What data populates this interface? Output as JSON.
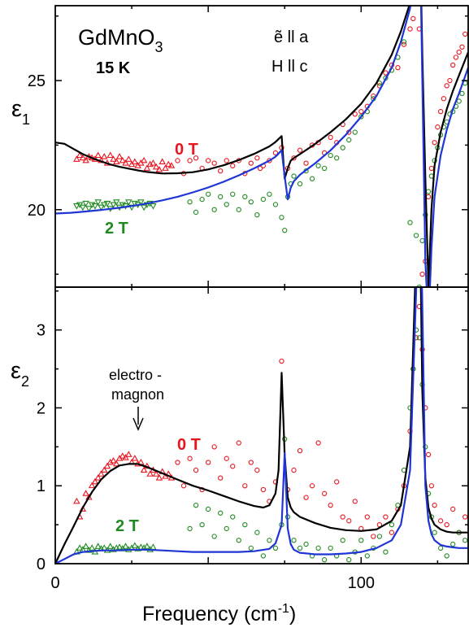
{
  "chart_data": [
    {
      "type": "line",
      "panel": "top",
      "ylabel": "ε",
      "ylabel_sub": "1",
      "title_compound_main": "GdMnO",
      "title_compound_sub": "3",
      "temperature": "15 K",
      "polarization_line1": "ẽ ll a",
      "polarization_line2": "H ll c",
      "xlim": [
        0,
        135
      ],
      "ylim": [
        17.0,
        27.9
      ],
      "yticks": [
        20,
        25
      ],
      "series": [
        {
          "name": "0 T",
          "color": "#e8141e",
          "kind": "model",
          "line_color": "#000000",
          "x": [
            0,
            3,
            6,
            9,
            12,
            15,
            18,
            21,
            24,
            27,
            30,
            35,
            40,
            45,
            50,
            55,
            60,
            65,
            70,
            72,
            74,
            75,
            76,
            77,
            78,
            80,
            85,
            90,
            95,
            100,
            105,
            110,
            113,
            116,
            118,
            119,
            120,
            121,
            122,
            123,
            124,
            126,
            128,
            130,
            132,
            135
          ],
          "y": [
            22.6,
            22.55,
            22.35,
            22.15,
            22.0,
            21.87,
            21.75,
            21.66,
            21.59,
            21.52,
            21.46,
            21.4,
            21.41,
            21.45,
            21.56,
            21.72,
            21.92,
            22.16,
            22.45,
            22.62,
            22.85,
            21.2,
            21.6,
            21.9,
            22.0,
            22.15,
            22.55,
            23.0,
            23.5,
            24.1,
            24.9,
            26.0,
            26.9,
            28.0,
            30.0,
            32.0,
            26.0,
            21.2,
            17.0,
            20.0,
            21.7,
            23.0,
            23.9,
            24.6,
            25.2,
            26.1
          ]
        },
        {
          "name": "2 T",
          "color": "#1f8a1f",
          "kind": "model",
          "line_color": "#1f35d6",
          "x": [
            0,
            5,
            10,
            15,
            20,
            25,
            30,
            35,
            40,
            45,
            50,
            55,
            60,
            65,
            70,
            72,
            74,
            75,
            76,
            77,
            78,
            80,
            85,
            90,
            95,
            100,
            105,
            110,
            113,
            116,
            118,
            119,
            120,
            121,
            122,
            123,
            124,
            126,
            128,
            130,
            132,
            135
          ],
          "y": [
            19.85,
            19.88,
            19.93,
            19.99,
            20.06,
            20.14,
            20.24,
            20.36,
            20.5,
            20.67,
            20.86,
            21.08,
            21.33,
            21.6,
            21.9,
            22.05,
            22.3,
            21.3,
            20.4,
            20.85,
            21.1,
            21.35,
            21.8,
            22.3,
            22.9,
            23.6,
            24.4,
            25.5,
            26.5,
            27.8,
            30.0,
            32.0,
            25.0,
            18.0,
            15.5,
            18.5,
            20.5,
            22.1,
            23.1,
            23.9,
            24.5,
            25.5
          ]
        }
      ],
      "scatter_0T": {
        "marker": "triangle",
        "x": [
          7,
          8,
          9,
          10,
          11,
          12,
          13,
          14,
          15,
          16,
          17,
          18,
          19,
          20,
          21,
          22,
          23,
          24,
          25,
          26,
          27,
          28,
          29,
          30,
          31,
          32,
          33,
          34,
          35,
          36,
          37,
          38
        ],
        "y": [
          21.95,
          22.1,
          22.0,
          21.9,
          22.05,
          22.0,
          21.95,
          22.1,
          21.9,
          22.05,
          21.8,
          22.1,
          21.95,
          21.85,
          22.05,
          21.9,
          21.8,
          21.95,
          21.75,
          21.85,
          21.7,
          21.8,
          21.9,
          21.6,
          21.75,
          21.8,
          21.65,
          21.55,
          21.85,
          21.6,
          21.75,
          21.7
        ]
      },
      "circles_0T": {
        "marker": "circle",
        "x": [
          40,
          42,
          44,
          46,
          48,
          50,
          52,
          54,
          56,
          58,
          60,
          62,
          64,
          66,
          67,
          68,
          70,
          72,
          74,
          76,
          78,
          80,
          82,
          84,
          86,
          88,
          90,
          92,
          94,
          96,
          98,
          100,
          102,
          104,
          106,
          108,
          110,
          112,
          114,
          116,
          117,
          118,
          119,
          120,
          121,
          122,
          123,
          124,
          125,
          126,
          127,
          128,
          129,
          130,
          131,
          132,
          133,
          134
        ],
        "y": [
          21.9,
          21.4,
          21.9,
          22.0,
          21.6,
          21.9,
          21.8,
          21.5,
          21.9,
          21.7,
          21.9,
          21.4,
          21.8,
          22.0,
          21.6,
          21.7,
          21.9,
          22.2,
          22.4,
          21.6,
          22.0,
          22.3,
          21.8,
          22.5,
          22.6,
          22.2,
          22.8,
          22.6,
          23.3,
          23.0,
          23.7,
          23.8,
          24.0,
          24.4,
          24.8,
          25.3,
          25.6,
          25.5,
          26.4,
          27.0,
          27.4,
          28.0,
          27.0,
          17.5,
          18.0,
          20.5,
          21.6,
          22.6,
          23.2,
          23.8,
          24.3,
          24.8,
          25.0,
          25.6,
          25.9,
          26.1,
          26.3,
          26.8
        ]
      },
      "scatter_2T": {
        "marker": "triangle-down",
        "x": [
          7,
          8,
          9,
          10,
          11,
          12,
          13,
          14,
          15,
          16,
          17,
          18,
          19,
          20,
          21,
          22,
          23,
          24,
          25,
          26,
          27,
          28,
          29,
          30,
          31,
          32
        ],
        "y": [
          20.15,
          20.2,
          20.1,
          20.25,
          20.05,
          20.2,
          20.15,
          20.3,
          20.1,
          20.2,
          20.25,
          20.05,
          20.2,
          20.3,
          20.1,
          20.2,
          20.15,
          20.3,
          20.1,
          20.25,
          20.2,
          20.3,
          20.1,
          20.2,
          20.25,
          20.15
        ]
      },
      "circles_2T": {
        "marker": "circle",
        "x": [
          44,
          46,
          48,
          50,
          52,
          54,
          56,
          58,
          60,
          62,
          64,
          66,
          68,
          70,
          72,
          74,
          75,
          76,
          77,
          78,
          80,
          82,
          84,
          86,
          88,
          90,
          92,
          94,
          96,
          98,
          100,
          102,
          104,
          106,
          108,
          110,
          112,
          114,
          116,
          118,
          119,
          120,
          121,
          122,
          123,
          124,
          125,
          126,
          127,
          128,
          129,
          130,
          131,
          132,
          133,
          134
        ],
        "y": [
          20.3,
          19.9,
          20.4,
          20.6,
          20.0,
          20.5,
          20.2,
          20.6,
          20.0,
          20.5,
          20.3,
          19.8,
          20.4,
          20.6,
          20.2,
          19.7,
          19.2,
          20.5,
          21.0,
          21.3,
          21.0,
          21.5,
          21.2,
          21.7,
          21.6,
          22.1,
          22.0,
          22.4,
          22.7,
          23.0,
          23.6,
          23.8,
          24.3,
          24.9,
          25.1,
          25.4,
          25.9,
          26.5,
          19.5,
          19.0,
          17.0,
          18.8,
          19.8,
          20.7,
          21.3,
          21.9,
          22.4,
          22.9,
          23.2,
          23.4,
          23.7,
          23.8,
          24.0,
          24.2,
          24.5,
          24.9
        ]
      },
      "labels": {
        "zero_tesla": "0 T",
        "two_tesla": "2 T"
      }
    },
    {
      "type": "line",
      "panel": "bottom",
      "xlabel_main": "Frequency (cm",
      "xlabel_sup": "-1",
      "xlabel_tail": ")",
      "ylabel": "ε",
      "ylabel_sub": "2",
      "xlim": [
        0,
        135
      ],
      "ylim": [
        0,
        3.55
      ],
      "xticks": [
        0,
        100
      ],
      "yticks": [
        0,
        1,
        2,
        3
      ],
      "annotation_line1": "electro -",
      "annotation_line2": "magnon",
      "series": [
        {
          "name": "0 T",
          "color": "#e8141e",
          "line_color": "#000000",
          "x": [
            0,
            3,
            6,
            9,
            12,
            15,
            18,
            21,
            24,
            27,
            30,
            35,
            40,
            45,
            50,
            55,
            60,
            65,
            68,
            70,
            72,
            73,
            74,
            75,
            76,
            77,
            78,
            80,
            85,
            90,
            95,
            100,
            105,
            110,
            113,
            116,
            118,
            119,
            120,
            121,
            122,
            123,
            124,
            126,
            128,
            130,
            132,
            135
          ],
          "y": [
            0.0,
            0.25,
            0.48,
            0.72,
            0.92,
            1.08,
            1.19,
            1.26,
            1.28,
            1.28,
            1.24,
            1.16,
            1.08,
            1.0,
            0.94,
            0.87,
            0.8,
            0.74,
            0.72,
            0.75,
            0.9,
            1.2,
            2.45,
            1.4,
            0.85,
            0.72,
            0.66,
            0.6,
            0.52,
            0.46,
            0.43,
            0.42,
            0.44,
            0.55,
            0.75,
            1.5,
            4.0,
            5.0,
            2.2,
            1.1,
            0.72,
            0.58,
            0.5,
            0.44,
            0.41,
            0.4,
            0.4,
            0.4
          ]
        },
        {
          "name": "2 T",
          "color": "#1f8a1f",
          "line_color": "#1f35d6",
          "x": [
            0,
            3,
            6,
            9,
            12,
            15,
            20,
            25,
            30,
            35,
            40,
            45,
            50,
            55,
            60,
            65,
            70,
            72,
            74,
            75,
            76,
            77,
            78,
            80,
            85,
            90,
            95,
            100,
            105,
            110,
            113,
            116,
            118,
            119,
            120,
            121,
            122,
            123,
            124,
            126,
            128,
            130,
            132,
            135
          ],
          "y": [
            0.0,
            0.06,
            0.12,
            0.15,
            0.16,
            0.17,
            0.17,
            0.18,
            0.18,
            0.17,
            0.16,
            0.15,
            0.15,
            0.15,
            0.15,
            0.16,
            0.19,
            0.26,
            0.5,
            1.42,
            0.45,
            0.25,
            0.18,
            0.14,
            0.12,
            0.12,
            0.13,
            0.15,
            0.2,
            0.3,
            0.5,
            1.2,
            3.5,
            5.5,
            3.3,
            1.0,
            0.55,
            0.38,
            0.3,
            0.24,
            0.22,
            0.21,
            0.2,
            0.2
          ]
        }
      ],
      "triangles_0T": {
        "marker": "triangle",
        "x": [
          7,
          8,
          9,
          10,
          11,
          12,
          13,
          14,
          15,
          16,
          17,
          18,
          19,
          20,
          21,
          22,
          23,
          24,
          25,
          26,
          27,
          28,
          29,
          30,
          31,
          32,
          33,
          34,
          35,
          36,
          37,
          38
        ],
        "y": [
          0.8,
          0.6,
          0.7,
          0.9,
          0.85,
          1.0,
          1.05,
          1.1,
          1.15,
          1.2,
          1.25,
          1.3,
          1.32,
          1.28,
          1.35,
          1.38,
          1.36,
          1.4,
          1.3,
          1.35,
          1.28,
          1.3,
          1.2,
          1.25,
          1.15,
          1.2,
          1.15,
          1.1,
          1.18,
          1.12,
          1.15,
          1.1
        ]
      },
      "circles_0T": {
        "marker": "circle",
        "x": [
          40,
          42,
          44,
          46,
          48,
          50,
          52,
          54,
          56,
          58,
          60,
          62,
          64,
          66,
          68,
          70,
          72,
          74,
          76,
          78,
          80,
          82,
          84,
          86,
          88,
          90,
          92,
          94,
          96,
          98,
          100,
          102,
          104,
          106,
          108,
          110,
          112,
          114,
          116,
          117,
          118,
          119,
          120,
          121,
          122,
          123,
          124,
          126,
          128,
          130,
          132,
          134
        ],
        "y": [
          1.3,
          1.0,
          1.35,
          1.2,
          0.95,
          1.3,
          1.5,
          1.1,
          1.35,
          1.25,
          1.55,
          1.0,
          1.3,
          1.2,
          0.95,
          0.8,
          1.05,
          2.6,
          0.95,
          1.2,
          1.45,
          0.85,
          1.0,
          1.55,
          0.9,
          0.75,
          1.05,
          0.6,
          0.55,
          0.8,
          0.45,
          0.6,
          0.35,
          0.5,
          0.6,
          0.4,
          0.7,
          1.0,
          1.7,
          2.5,
          2.9,
          3.3,
          2.75,
          2.0,
          1.4,
          1.0,
          0.75,
          0.55,
          0.5,
          0.7,
          0.4,
          0.6
        ]
      },
      "triangles_2T": {
        "marker": "triangle",
        "x": [
          7,
          8,
          9,
          10,
          11,
          12,
          13,
          14,
          15,
          16,
          17,
          18,
          19,
          20,
          21,
          22,
          23,
          24,
          25,
          26,
          27,
          28,
          29,
          30,
          31,
          32
        ],
        "y": [
          0.15,
          0.2,
          0.18,
          0.22,
          0.17,
          0.2,
          0.15,
          0.22,
          0.19,
          0.2,
          0.17,
          0.22,
          0.18,
          0.2,
          0.21,
          0.19,
          0.22,
          0.18,
          0.2,
          0.23,
          0.19,
          0.21,
          0.2,
          0.22,
          0.18,
          0.21
        ]
      },
      "circles_2T": {
        "marker": "circle",
        "x": [
          44,
          46,
          48,
          50,
          52,
          54,
          56,
          58,
          60,
          62,
          64,
          66,
          68,
          70,
          72,
          74,
          75,
          76,
          78,
          80,
          82,
          84,
          86,
          88,
          90,
          92,
          94,
          96,
          98,
          100,
          102,
          104,
          106,
          108,
          110,
          112,
          114,
          116,
          117,
          118,
          119,
          120,
          121,
          122,
          123,
          124,
          126,
          128,
          130,
          132,
          134
        ],
        "y": [
          0.45,
          0.75,
          0.5,
          0.7,
          0.35,
          0.65,
          0.45,
          0.6,
          0.3,
          0.5,
          0.2,
          0.4,
          0.1,
          0.3,
          0.2,
          0.5,
          1.6,
          0.6,
          0.3,
          0.2,
          0.25,
          0.1,
          0.2,
          0.05,
          0.2,
          0.1,
          0.3,
          0.05,
          0.15,
          0.3,
          0.1,
          0.2,
          0.35,
          0.15,
          0.5,
          0.75,
          1.2,
          2.0,
          2.5,
          3.0,
          2.9,
          2.3,
          1.5,
          0.9,
          0.6,
          0.4,
          0.2,
          0.1,
          0.25,
          0.4,
          0.3
        ]
      },
      "labels": {
        "zero_tesla": "0 T",
        "two_tesla": "2 T"
      }
    }
  ]
}
